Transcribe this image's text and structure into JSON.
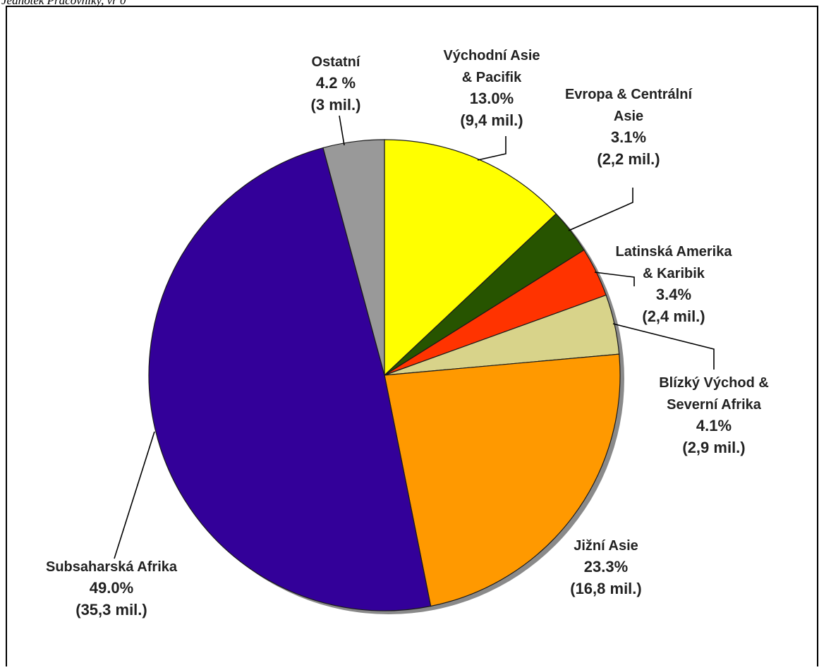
{
  "header_fragment": "Jednotek Pracovníky, vr 0",
  "chart_data": {
    "type": "pie",
    "title": "",
    "start": "12 o'clock",
    "direction": "clockwise",
    "slices": [
      {
        "name": "Východní Asie & Pacifik",
        "label_lines": [
          "Východní Asie",
          "& Pacifik"
        ],
        "percent": 13.0,
        "percent_label": "13.0%",
        "count_label": "(9,4 mil.)",
        "color": "#FFFF00"
      },
      {
        "name": "Evropa & Centrální Asie",
        "label_lines": [
          "Evropa & Centrální",
          "Asie"
        ],
        "percent": 3.1,
        "percent_label": "3.1%",
        "count_label": "(2,2 mil.)",
        "color": "#275400"
      },
      {
        "name": "Latinská Amerika & Karibik",
        "label_lines": [
          "Latinská Amerika",
          "& Karibik"
        ],
        "percent": 3.4,
        "percent_label": "3.4%",
        "count_label": "(2,4 mil.)",
        "color": "#FF3300"
      },
      {
        "name": "Blízký Východ & Severní Afrika",
        "label_lines": [
          "Blízký Východ &",
          "Severní Afrika"
        ],
        "percent": 4.1,
        "percent_label": "4.1%",
        "count_label": "(2,9 mil.)",
        "color": "#D8D38A"
      },
      {
        "name": "Jižní Asie",
        "label_lines": [
          "Jižní Asie"
        ],
        "percent": 23.3,
        "percent_label": "23.3%",
        "count_label": "(16,8 mil.)",
        "color": "#FF9900"
      },
      {
        "name": "Subsaharská Afrika",
        "label_lines": [
          "Subsaharská Afrika"
        ],
        "percent": 49.0,
        "percent_label": "49.0%",
        "count_label": "(35,3 mil.)",
        "color": "#330099"
      },
      {
        "name": "Ostatní",
        "label_lines": [
          "Ostatní"
        ],
        "percent": 4.2,
        "percent_label": "4.2 %",
        "count_label": "(3 mil.)",
        "color": "#999999"
      }
    ]
  }
}
